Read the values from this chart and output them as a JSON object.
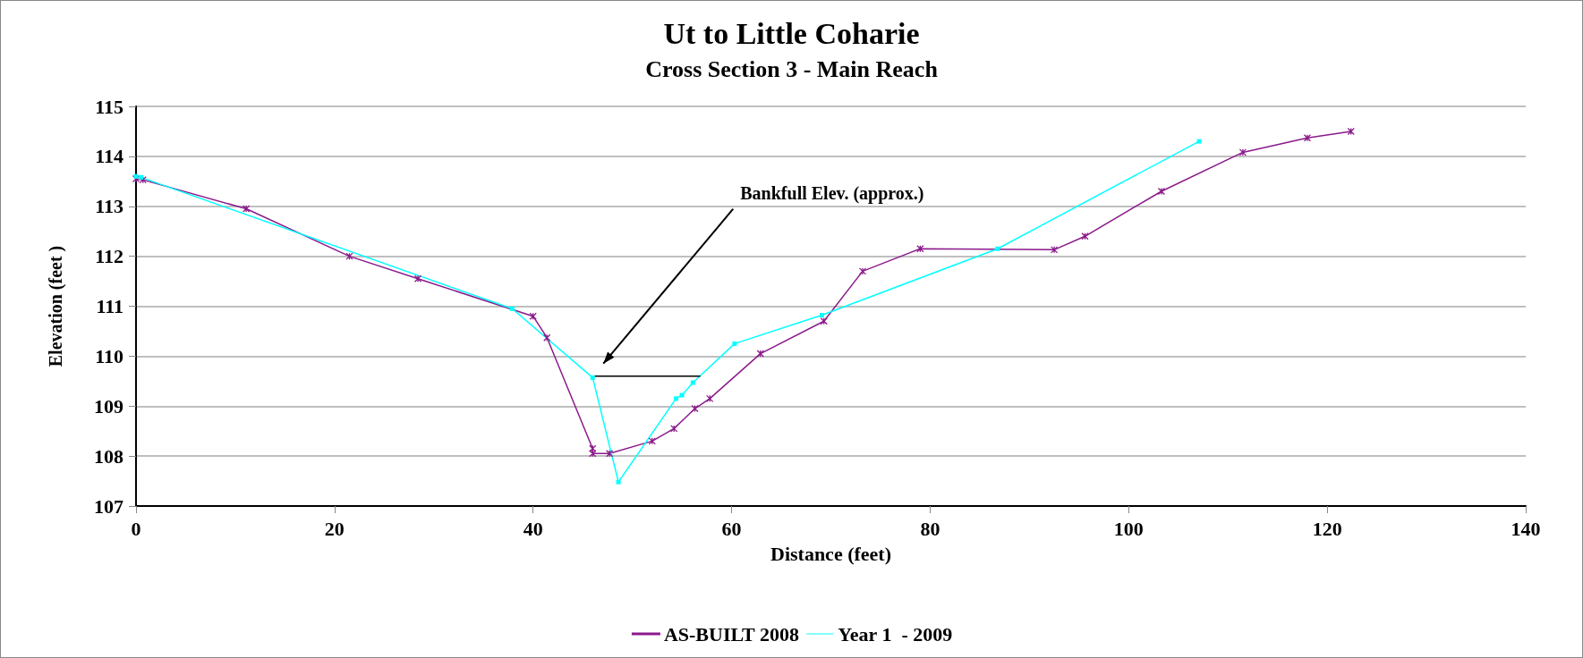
{
  "chart_data": {
    "type": "line",
    "title": "Ut to Little Coharie",
    "subtitle": "Cross Section 3 - Main Reach",
    "xlabel": "Distance (feet)",
    "ylabel": "Elevation (feet )",
    "xlim": [
      0,
      140
    ],
    "xticks": [
      0,
      20,
      40,
      60,
      80,
      100,
      120,
      140
    ],
    "ylim": [
      107,
      115
    ],
    "yticks": [
      107,
      108,
      109,
      110,
      111,
      112,
      113,
      114,
      115
    ],
    "grid": "y",
    "legend": "bottom",
    "series": [
      {
        "name": "AS-BUILT 2008",
        "color": "#8b1a8b",
        "marker": "cross",
        "x": [
          0,
          0.7,
          11.1,
          21.5,
          28.4,
          40,
          41.4,
          46,
          46,
          47.7,
          52,
          54.2,
          56.3,
          57.8,
          62.9,
          69.3,
          73.2,
          79,
          92.5,
          95.6,
          103.3,
          111.5,
          118,
          122.4
        ],
        "values": [
          113.55,
          113.53,
          112.95,
          112.0,
          111.55,
          110.8,
          110.37,
          108.15,
          108.05,
          108.05,
          108.3,
          108.55,
          108.95,
          109.15,
          110.05,
          110.7,
          111.7,
          112.15,
          112.13,
          112.4,
          113.3,
          114.08,
          114.37,
          114.5
        ]
      },
      {
        "name": "Year 1  - 2009",
        "color": "#00ffff",
        "marker": "square",
        "x": [
          0,
          0.5,
          37.9,
          46,
          48.6,
          54.4,
          55,
          56.1,
          60.3,
          69.1,
          86.8,
          107.1
        ],
        "values": [
          113.6,
          113.58,
          110.95,
          109.57,
          107.48,
          109.15,
          109.22,
          109.47,
          110.25,
          110.82,
          112.15,
          114.3
        ]
      },
      {
        "type": "line",
        "color": "#000000",
        "marker": "none",
        "x": [
          46,
          56.8
        ],
        "values": [
          109.6,
          109.6
        ]
      }
    ],
    "annotations": [
      "Bankfull Elev. (approx.)"
    ]
  }
}
